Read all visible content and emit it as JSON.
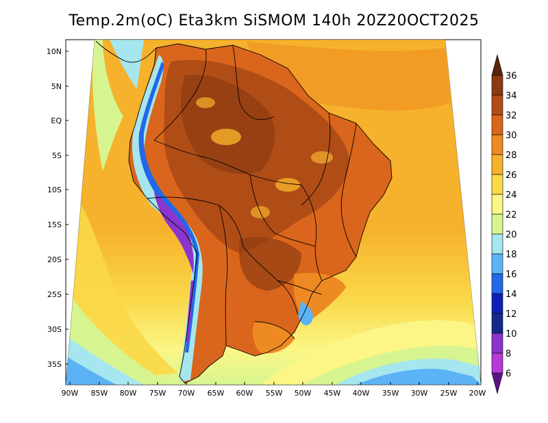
{
  "title": "Temp.2m(oC) Eta3km SiSMOM 140h 20Z20OCT2025",
  "lat_labels": [
    "10N",
    "5N",
    "EQ",
    "5S",
    "10S",
    "15S",
    "20S",
    "25S",
    "30S",
    "35S"
  ],
  "lon_labels": [
    "90W",
    "85W",
    "80W",
    "75W",
    "70W",
    "65W",
    "60W",
    "55W",
    "50W",
    "45W",
    "40W",
    "35W",
    "30W",
    "25W",
    "20W"
  ],
  "colorbar": {
    "unit": "oC",
    "labels": [
      "36",
      "34",
      "32",
      "30",
      "28",
      "26",
      "24",
      "22",
      "20",
      "18",
      "16",
      "14",
      "12",
      "10",
      "8",
      "6"
    ],
    "bins": [
      {
        "range": ">36",
        "color": "#5a2408"
      },
      {
        "range": "34-36",
        "color": "#8c3a12"
      },
      {
        "range": "32-34",
        "color": "#b04d16"
      },
      {
        "range": "30-32",
        "color": "#d9661c"
      },
      {
        "range": "28-30",
        "color": "#ee8a22"
      },
      {
        "range": "26-28",
        "color": "#f6b22c"
      },
      {
        "range": "24-26",
        "color": "#fad847"
      },
      {
        "range": "22-24",
        "color": "#fbf686"
      },
      {
        "range": "20-22",
        "color": "#d6f590"
      },
      {
        "range": "18-20",
        "color": "#a6e6ee"
      },
      {
        "range": "16-18",
        "color": "#5bb3f5"
      },
      {
        "range": "14-16",
        "color": "#2268e8"
      },
      {
        "range": "12-14",
        "color": "#0d22b5"
      },
      {
        "range": "10-12",
        "color": "#142a8a"
      },
      {
        "range": "8-10",
        "color": "#8a35cc"
      },
      {
        "range": "6-8",
        "color": "#b53ad6"
      },
      {
        "range": "<6",
        "color": "#5a1482"
      }
    ]
  },
  "colors": {
    "ocean_north": "#fad847",
    "ocean_subtropic": "#f6b22c",
    "ocean_south": "#fbf686",
    "land_hot": "#d9661c",
    "amazon": "#b04d16",
    "andes_cold": "#2268e8",
    "andes_peak": "#8a35cc"
  }
}
